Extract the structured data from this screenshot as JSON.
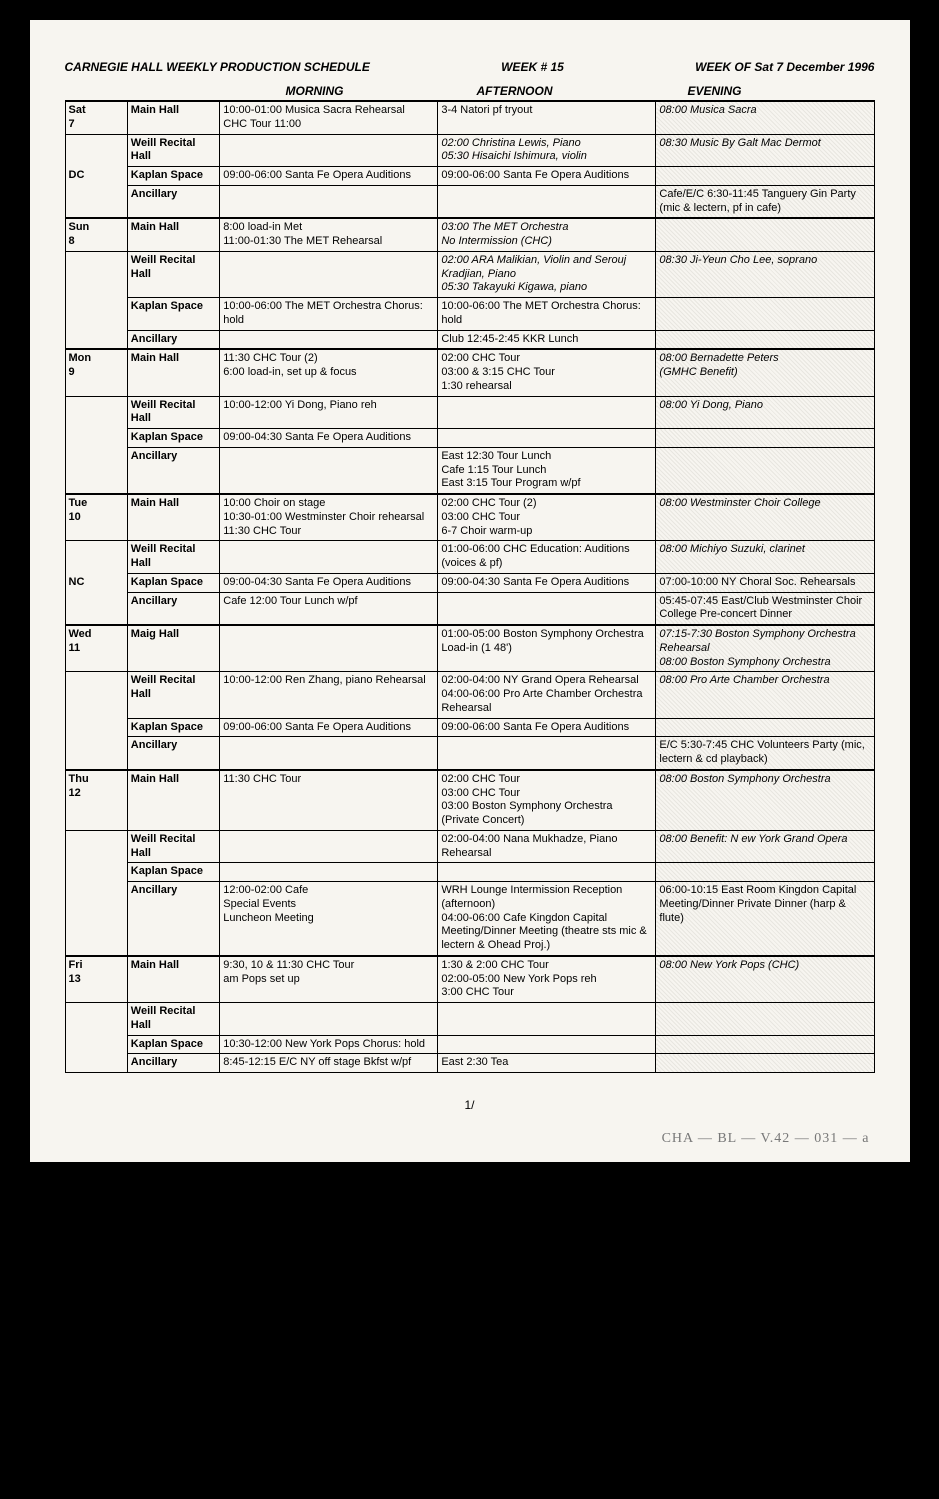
{
  "header": {
    "title": "CARNEGIE HALL WEEKLY PRODUCTION SCHEDULE",
    "week_num": "WEEK # 15",
    "week_of": "WEEK OF Sat 7 December 1996"
  },
  "col_headers": {
    "morning": "MORNING",
    "afternoon": "AFTERNOON",
    "evening": "EVENING"
  },
  "page_num": "1/",
  "stamp": "CHA — BL — V.42 — 031 — a",
  "days": [
    {
      "day": "Sat\n7",
      "note": "DC",
      "rows": [
        {
          "venue": "Main Hall",
          "m": "10:00-01:00 Musica Sacra Rehearsal\nCHC Tour 11:00",
          "a": "3-4 Natori pf tryout",
          "e": "08:00 Musica Sacra"
        },
        {
          "venue": "Weill Recital Hall",
          "m": "",
          "a": "02:00 Christina Lewis, Piano\n05:30 Hisaichi Ishimura, violin",
          "e": "08:30 Music By Galt Mac Dermot",
          "a_italic": true
        },
        {
          "venue": "Kaplan Space",
          "m": "09:00-06:00 Santa Fe Opera Auditions",
          "a": "09:00-06:00 Santa Fe Opera Auditions",
          "e": ""
        },
        {
          "venue": "Ancillary",
          "m": "",
          "a": "",
          "e": "Cafe/E/C 6:30-11:45 Tanguery Gin Party (mic & lectern, pf in cafe)",
          "e_plain": true
        }
      ]
    },
    {
      "day": "Sun\n8",
      "note": "",
      "rows": [
        {
          "venue": "Main Hall",
          "m": "8:00 load-in Met\n11:00-01:30 The MET Rehearsal",
          "a": "03:00 The MET Orchestra\nNo Intermission (CHC)",
          "e": "",
          "a_italic": true
        },
        {
          "venue": "Weill Recital Hall",
          "m": "",
          "a": "02:00 ARA Malikian, Violin and Serouj Kradjian, Piano\n05:30 Takayuki Kigawa, piano",
          "e": "08:30 Ji-Yeun Cho Lee, soprano",
          "a_italic": true
        },
        {
          "venue": "Kaplan Space",
          "m": "10:00-06:00 The MET Orchestra Chorus: hold",
          "a": "10:00-06:00 The MET Orchestra Chorus: hold",
          "e": ""
        },
        {
          "venue": "Ancillary",
          "m": "",
          "a": "Club 12:45-2:45 KKR Lunch",
          "e": ""
        }
      ]
    },
    {
      "day": "Mon\n9",
      "note": "",
      "rows": [
        {
          "venue": "Main Hall",
          "m": "11:30 CHC Tour (2)\n6:00 load-in, set up & focus",
          "a": "02:00 CHC Tour\n03:00 & 3:15 CHC Tour\n1:30 rehearsal",
          "e": "08:00 Bernadette Peters\n(GMHC Benefit)"
        },
        {
          "venue": "Weill Recital Hall",
          "m": "10:00-12:00 Yi Dong, Piano reh",
          "a": "",
          "e": "08:00 Yi Dong, Piano"
        },
        {
          "venue": "Kaplan Space",
          "m": "09:00-04:30 Santa Fe Opera Auditions",
          "a": "",
          "e": ""
        },
        {
          "venue": "Ancillary",
          "m": "",
          "a": "East 12:30 Tour Lunch\nCafe 1:15 Tour Lunch\nEast 3:15 Tour Program w/pf",
          "e": ""
        }
      ]
    },
    {
      "day": "Tue\n10",
      "note": "NC",
      "rows": [
        {
          "venue": "Main Hall",
          "m": "10:00 Choir on stage\n10:30-01:00 Westminster Choir rehearsal\n11:30 CHC Tour",
          "a": "02:00 CHC Tour (2)\n03:00 CHC Tour\n6-7 Choir warm-up",
          "e": "08:00 Westminster Choir College"
        },
        {
          "venue": "Weill Recital Hall",
          "m": "",
          "a": "01:00-06:00 CHC Education: Auditions (voices & pf)",
          "e": "08:00 Michiyo Suzuki, clarinet"
        },
        {
          "venue": "Kaplan Space",
          "m": "09:00-04:30 Santa Fe Opera Auditions",
          "a": "09:00-04:30 Santa Fe Opera Auditions",
          "e": "07:00-10:00 NY Choral Soc. Rehearsals",
          "e_plain": true
        },
        {
          "venue": "Ancillary",
          "m": "Cafe 12:00 Tour Lunch w/pf",
          "a": "",
          "e": "05:45-07:45 East/Club Westminster Choir College Pre-concert Dinner",
          "e_plain": true
        }
      ]
    },
    {
      "day": "Wed\n11",
      "note": "",
      "rows": [
        {
          "venue": "Maig Hall",
          "m": "",
          "a": "01:00-05:00 Boston Symphony Orchestra  Load-in (1 48')",
          "e": "07:15-7:30 Boston Symphony Orchestra Rehearsal\n08:00 Boston Symphony Orchestra"
        },
        {
          "venue": "Weill Recital Hall",
          "m": "10:00-12:00 Ren Zhang, piano Rehearsal",
          "a": "02:00-04:00 NY Grand Opera Rehearsal\n04:00-06:00 Pro Arte Chamber Orchestra  Rehearsal",
          "e": "08:00 Pro Arte Chamber Orchestra"
        },
        {
          "venue": "Kaplan Space",
          "m": "09:00-06:00 Santa Fe Opera Auditions",
          "a": "09:00-06:00 Santa Fe Opera Auditions",
          "e": ""
        },
        {
          "venue": "Ancillary",
          "m": "",
          "a": "",
          "e": "E/C 5:30-7:45 CHC Volunteers Party (mic, lectern & cd playback)",
          "e_plain": true
        }
      ]
    },
    {
      "day": "Thu\n12",
      "note": "",
      "rows": [
        {
          "venue": "Main Hall",
          "m": "11:30 CHC Tour",
          "a": "02:00 CHC Tour\n03:00 CHC Tour\n03:00 Boston Symphony Orchestra (Private Concert)",
          "e": "08:00 Boston Symphony Orchestra"
        },
        {
          "venue": "Weill Recital Hall",
          "m": "",
          "a": "02:00-04:00 Nana Mukhadze, Piano Rehearsal",
          "e": "08:00 Benefit: N ew York Grand Opera"
        },
        {
          "venue": "Kaplan Space",
          "m": "",
          "a": "",
          "e": ""
        },
        {
          "venue": "Ancillary",
          "m": "12:00-02:00 Cafe\nSpecial Events\nLuncheon Meeting",
          "a": "WRH Lounge Intermission Reception (afternoon)\n04:00-06:00 Cafe Kingdon Capital Meeting/Dinner Meeting (theatre sts mic & lectern & Ohead Proj.)",
          "e": "06:00-10:15 East Room  Kingdon Capital Meeting/Dinner Private Dinner (harp & flute)",
          "e_plain": true
        }
      ]
    },
    {
      "day": "Fri\n13",
      "note": "",
      "rows": [
        {
          "venue": "Main Hall",
          "m": "9:30, 10 & 11:30 CHC Tour\nam Pops set up",
          "a": "1:30 & 2:00 CHC Tour\n02:00-05:00 New York Pops reh\n3:00 CHC Tour",
          "e": "08:00 New York Pops (CHC)"
        },
        {
          "venue": "Weill Recital Hall",
          "m": "",
          "a": "",
          "e": ""
        },
        {
          "venue": "Kaplan Space",
          "m": "10:30-12:00 New York Pops Chorus: hold",
          "a": "",
          "e": ""
        },
        {
          "venue": "Ancillary",
          "m": "8:45-12:15 E/C NY off stage Bkfst w/pf",
          "a": "East 2:30 Tea",
          "e": ""
        }
      ]
    }
  ]
}
